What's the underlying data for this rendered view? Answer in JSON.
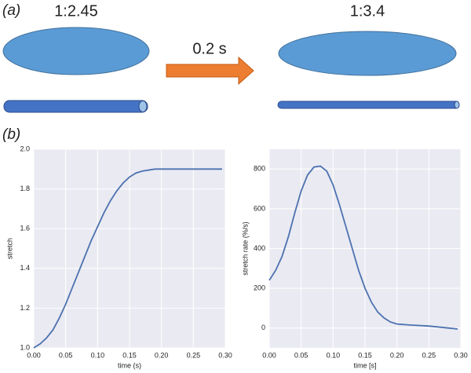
{
  "panel_a": {
    "label": "(a)",
    "before_ratio": "1:2.45",
    "duration": "0.2 s",
    "after_ratio": "1:3.4"
  },
  "panel_b": {
    "label": "(b)"
  },
  "chart_data": [
    {
      "type": "line",
      "x_label": "time (s)",
      "y_label": "stretch",
      "grid": true,
      "background": "#eaeaf2",
      "x": [
        0,
        0.01,
        0.02,
        0.03,
        0.04,
        0.05,
        0.06,
        0.07,
        0.08,
        0.09,
        0.1,
        0.11,
        0.12,
        0.13,
        0.14,
        0.15,
        0.16,
        0.17,
        0.18,
        0.19,
        0.2,
        0.22,
        0.25,
        0.28,
        0.295
      ],
      "series": [
        {
          "color": "#4c72b0",
          "values": [
            1.0,
            1.02,
            1.05,
            1.09,
            1.15,
            1.22,
            1.3,
            1.38,
            1.46,
            1.54,
            1.61,
            1.68,
            1.74,
            1.79,
            1.83,
            1.86,
            1.88,
            1.89,
            1.895,
            1.9,
            1.9,
            1.9,
            1.9,
            1.9,
            1.9
          ]
        }
      ],
      "xlim": [
        0,
        0.3
      ],
      "xticks": [
        {
          "value": 0,
          "label": "0.00"
        },
        {
          "value": 0.05,
          "label": "0.05"
        },
        {
          "value": 0.1,
          "label": "0.10"
        },
        {
          "value": 0.15,
          "label": "0.15"
        },
        {
          "value": 0.2,
          "label": "0.20"
        },
        {
          "value": 0.25,
          "label": "0.25"
        },
        {
          "value": 0.3,
          "label": "0.30"
        }
      ],
      "ylim": [
        1.0,
        2.0
      ],
      "yticks": [
        {
          "value": 1.0,
          "label": "1.0"
        },
        1.2,
        1.4,
        1.6,
        1.8,
        {
          "value": 2.0,
          "label": "2.0"
        }
      ]
    },
    {
      "type": "line",
      "x_label": "time [s]",
      "y_label": "stretch rate (%/s)",
      "grid": true,
      "background": "#eaeaf2",
      "x": [
        0,
        0.01,
        0.02,
        0.03,
        0.04,
        0.05,
        0.06,
        0.07,
        0.08,
        0.09,
        0.1,
        0.11,
        0.12,
        0.13,
        0.14,
        0.15,
        0.16,
        0.17,
        0.18,
        0.19,
        0.2,
        0.22,
        0.25,
        0.28,
        0.295
      ],
      "series": [
        {
          "color": "#4c72b0",
          "values": [
            240,
            290,
            360,
            460,
            580,
            690,
            770,
            810,
            815,
            790,
            720,
            620,
            510,
            400,
            290,
            200,
            130,
            80,
            50,
            30,
            20,
            15,
            10,
            0,
            -5
          ]
        }
      ],
      "xlim": [
        0,
        0.3
      ],
      "xticks": [
        {
          "value": 0,
          "label": "0.00"
        },
        {
          "value": 0.05,
          "label": "0.05"
        },
        {
          "value": 0.1,
          "label": "0.10"
        },
        {
          "value": 0.15,
          "label": "0.15"
        },
        {
          "value": 0.2,
          "label": "0.20"
        },
        {
          "value": 0.25,
          "label": "0.25"
        },
        {
          "value": 0.3,
          "label": "0.30"
        }
      ],
      "ylim": [
        -100,
        900
      ],
      "yticks": [
        0,
        200,
        400,
        600,
        800
      ]
    }
  ]
}
